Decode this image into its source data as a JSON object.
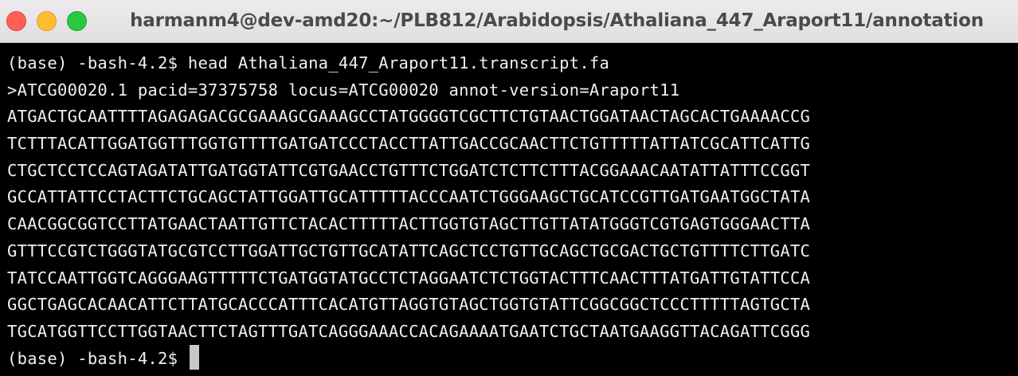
{
  "window": {
    "title": "harmanm4@dev-amd20:~/PLB812/Arabidopsis/Athaliana_447_Araport11/annotation",
    "traffic_lights": [
      "close",
      "minimize",
      "maximize"
    ]
  },
  "terminal": {
    "prompt": "(base) -bash-4.2$ ",
    "command": "head Athaliana_447_Araport11.transcript.fa",
    "header_line": ">ATCG00020.1 pacid=37375758 locus=ATCG00020 annot-version=Araport11",
    "sequence_lines": [
      "ATGACTGCAATTTTAGAGAGACGCGAAAGCGAAAGCCTATGGGGTCGCTTCTGTAACTGGATAACTAGCACTGAAAACCG",
      "TCTTTACATTGGATGGTTTGGTGTTTTGATGATCCCTACCTTATTGACCGCAACTTCTGTTTTTATTATCGCATTCATTG",
      "CTGCTCCTCCAGTAGATATTGATGGTATTCGTGAACCTGTTTCTGGATCTCTTCTTTACGGAAACAATATTATTTCCGGT",
      "GCCATTATTCCTACTTCTGCAGCTATTGGATTGCATTTTTACCCAATCTGGGAAGCTGCATCCGTTGATGAATGGCTATA",
      "CAACGGCGGTCCTTATGAACTAATTGTTCTACACTTTTTACTTGGTGTAGCTTGTTATATGGGTCGTGAGTGGGAACTTA",
      "GTTTCCGTCTGGGTATGCGTCCTTGGATTGCTGTTGCATATTCAGCTCCTGTTGCAGCTGCGACTGCTGTTTTCTTGATC",
      "TATCCAATTGGTCAGGGAAGTTTTTCTGATGGTATGCCTCTAGGAATCTCTGGTACTTTCAACTTTATGATTGTATTCCA",
      "GGCTGAGCACAACATTCTTATGCACCCATTTCACATGTTAGGTGTAGCTGGTGTATTCGGCGGCTCCCTTTTTAGTGCTA",
      "TGCATGGTTCCTTGGTAACTTCTAGTTTGATCAGGGAAACCACAGAAAATGAATCTGCTAATGAAGGTTACAGATTCGGG"
    ],
    "final_prompt": "(base) -bash-4.2$ "
  }
}
